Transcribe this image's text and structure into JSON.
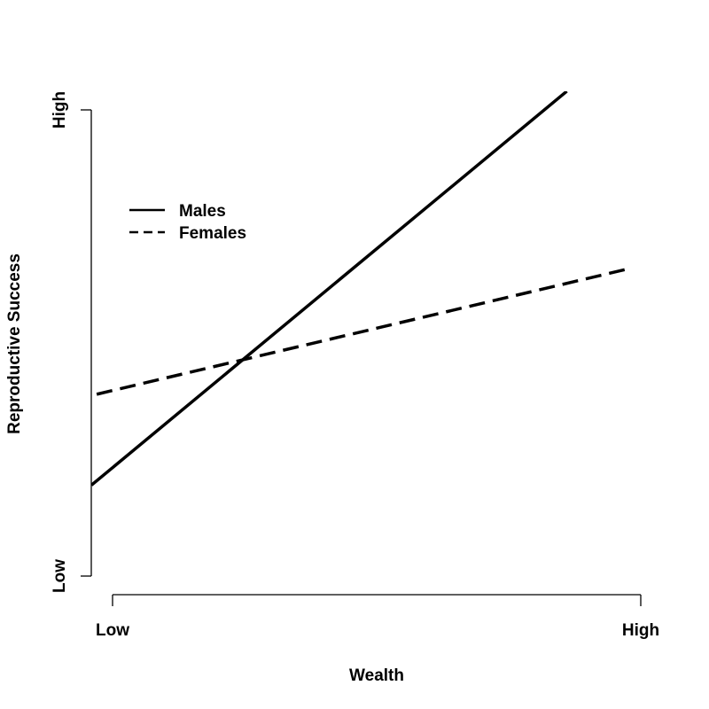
{
  "chart_data": {
    "type": "line",
    "xlabel": "Wealth",
    "ylabel": "Reproductive Success",
    "x_tick_labels": [
      "Low",
      "High"
    ],
    "y_tick_labels": [
      "Low",
      "High"
    ],
    "xlim": [
      0,
      1
    ],
    "ylim": [
      0,
      1
    ],
    "grid": false,
    "legend": "top-left",
    "series": [
      {
        "name": "Males",
        "style": "solid",
        "color": "#000000",
        "x": [
          -0.04,
          0.86
        ],
        "y": [
          0.195,
          1.04
        ]
      },
      {
        "name": "Females",
        "style": "dashed",
        "color": "#000000",
        "x": [
          -0.03,
          0.98
        ],
        "y": [
          0.39,
          0.66
        ]
      }
    ]
  }
}
